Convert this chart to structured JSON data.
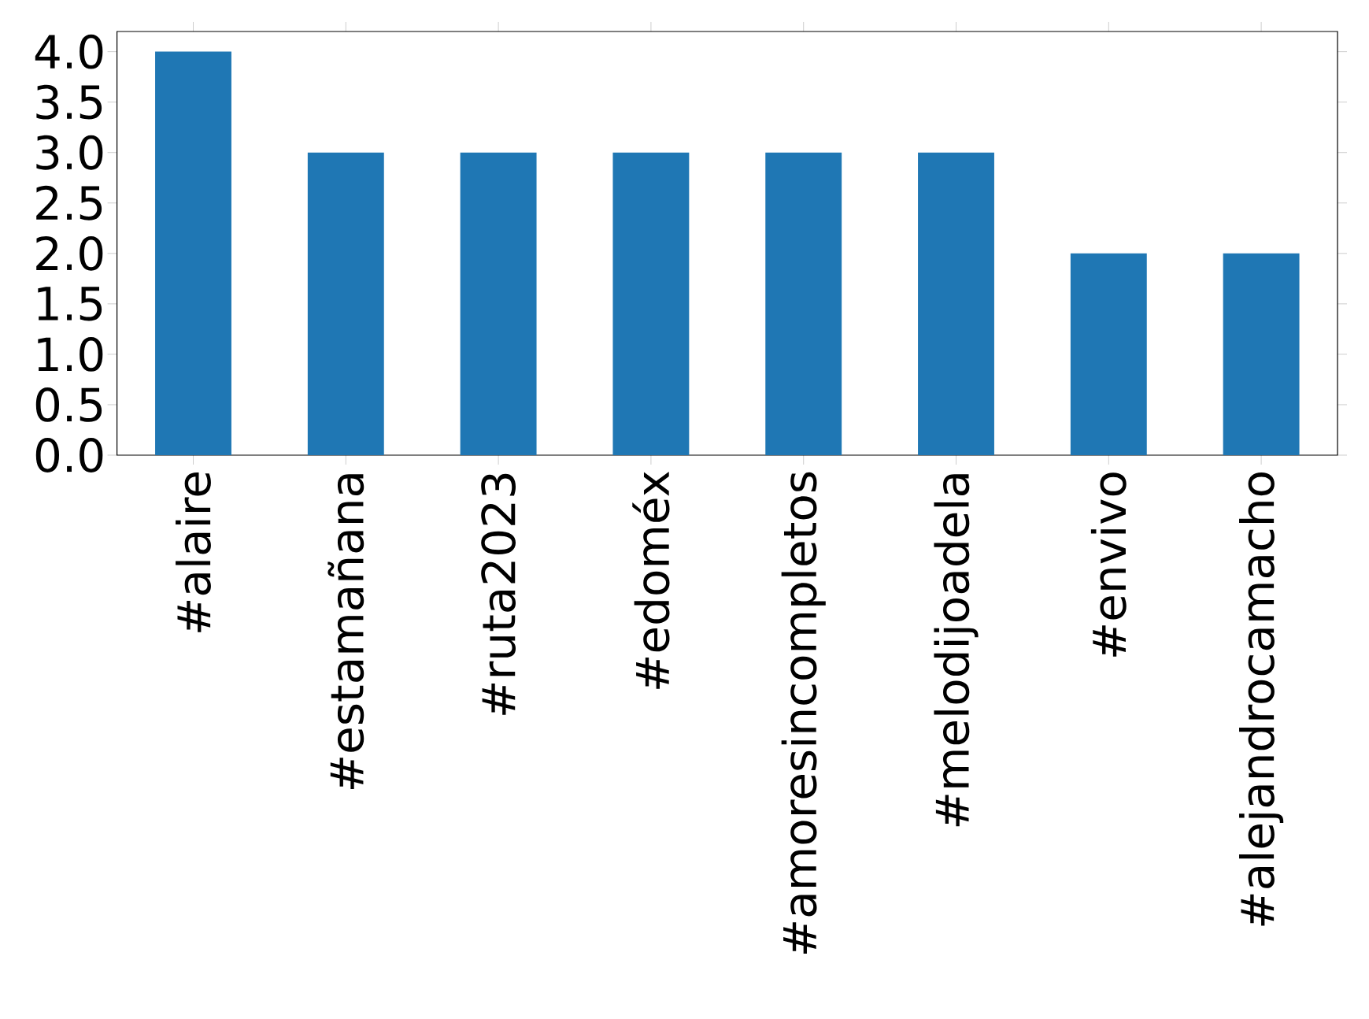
{
  "chart_data": {
    "type": "bar",
    "categories": [
      "#alaire",
      "#estamañana",
      "#ruta2023",
      "#edoméx",
      "#amoresincompletos",
      "#melodijoadela",
      "#envivo",
      "#alejandrocamacho"
    ],
    "values": [
      4,
      3,
      3,
      3,
      3,
      3,
      2,
      2
    ],
    "color": "#1f77b4",
    "ylim": [
      0,
      4.2
    ],
    "yticks": [
      {
        "value": 0,
        "label": "0.0"
      },
      {
        "value": 0.5,
        "label": "0.5"
      },
      {
        "value": 1,
        "label": "1.0"
      },
      {
        "value": 1.5,
        "label": "1.5"
      },
      {
        "value": 2,
        "label": "2.0"
      },
      {
        "value": 2.5,
        "label": "2.5"
      },
      {
        "value": 3,
        "label": "3.0"
      },
      {
        "value": 3.5,
        "label": "3.5"
      },
      {
        "value": 4,
        "label": "4.0"
      }
    ]
  }
}
